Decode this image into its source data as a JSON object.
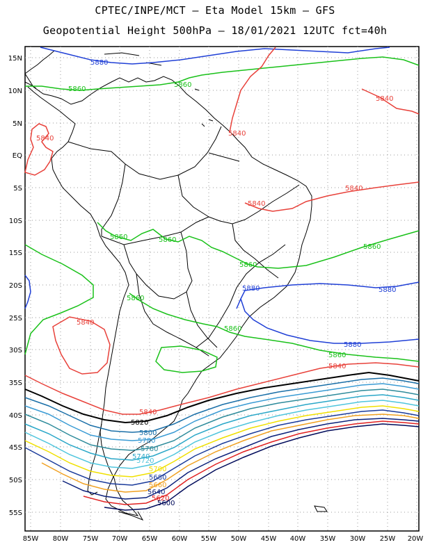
{
  "header": {
    "line1": "CPTEC/INPE/MCT —  Eta Model 15km — GFS",
    "line2": "Geopotential Height 500hPa — 18/01/2021 12UTC fct=40h"
  },
  "axes": {
    "lat_labels": [
      "15N",
      "10N",
      "5N",
      "EQ",
      "5S",
      "10S",
      "15S",
      "20S",
      "25S",
      "30S",
      "35S",
      "40S",
      "45S",
      "50S",
      "55S"
    ],
    "lon_labels": [
      "85W",
      "80W",
      "75W",
      "70W",
      "65W",
      "60W",
      "55W",
      "50W",
      "45W",
      "40W",
      "35W",
      "30W",
      "25W",
      "20W"
    ]
  },
  "colors": {
    "c5880": "#1f3fd6",
    "c5860": "#19c119",
    "c5840": "#e8413a",
    "c5820": "#000000",
    "c5800": "#1a6fa8",
    "c5780": "#3a9bd4",
    "c5760": "#2e8b9b",
    "c5740": "#2aa7c8",
    "c5720": "#4fc5dd",
    "c5700": "#f0e000",
    "c5680": "#1a3a9a",
    "c5660": "#f0a020",
    "c5640": "#0a1f7a",
    "c5620": "#e02020",
    "c5600": "#000a5a"
  },
  "contour_labels": {
    "l5880a": "5880",
    "l5880b": "5880",
    "l5880c": "5880",
    "l5880d": "5880",
    "l5860a": "5860",
    "l5860b": "5860",
    "l5860c": "5860",
    "l5860d": "5860",
    "l5860e": "5860",
    "l5860f": "5860",
    "l5860g": "5860",
    "l5860h": "5860",
    "l5860i": "5860",
    "l5840a": "5840",
    "l5840b": "5840",
    "l5840c": "5840",
    "l5840d": "5840",
    "l5840e": "5840",
    "l5840f": "5840",
    "l5840g": "5840",
    "l5840h": "5840",
    "l5820": "5820",
    "l5800": "5800",
    "l5780": "5780",
    "l5760": "5760",
    "l5740": "5740",
    "l5720": "5720",
    "l5700": "5700",
    "l5680": "5680",
    "l5660": "5660",
    "l5640": "5640",
    "l5620": "5620",
    "l5600": "5600"
  }
}
